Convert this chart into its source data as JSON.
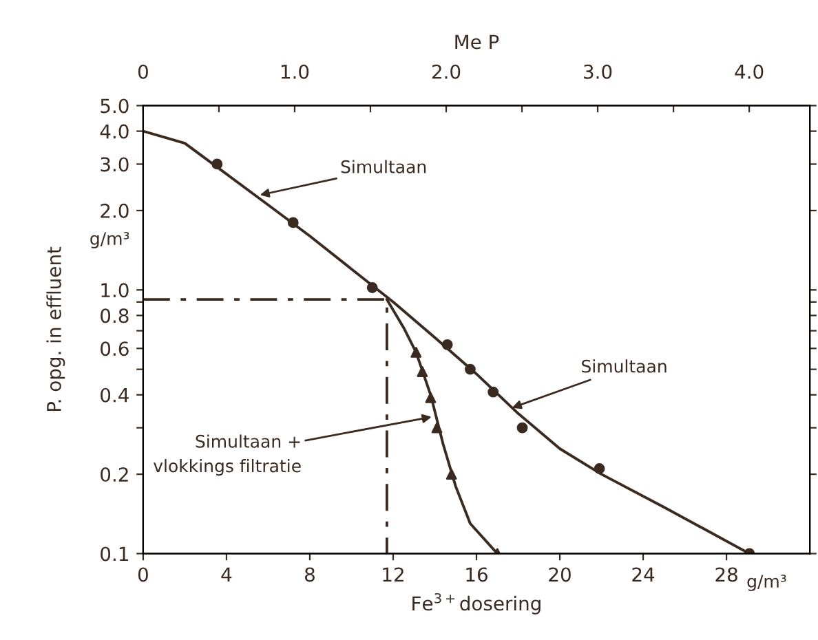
{
  "chart_data": {
    "type": "line",
    "xlabel": "Fe$^{3+}$dosering",
    "ylabel": "P. opg. in effluent",
    "x2label": "Me P",
    "xlim": [
      0,
      32
    ],
    "xticks": [
      0,
      4,
      8,
      12,
      16,
      20,
      24,
      28
    ],
    "x2lim": [
      0,
      4.4
    ],
    "x2ticks": [
      0,
      {
        "value": 0.5,
        "label": null
      },
      {
        "value": 1.0,
        "label": "1.0"
      },
      {
        "value": 1.5,
        "label": null
      },
      {
        "value": 2.0,
        "label": "2.0"
      },
      {
        "value": 2.5,
        "label": null
      },
      {
        "value": 3.0,
        "label": "3.0"
      },
      {
        "value": 3.5,
        "label": null
      },
      {
        "value": 4.0,
        "label": "4.0"
      }
    ],
    "log": "y",
    "ylim": [
      0.1,
      5.0
    ],
    "yticks": [
      {
        "value": 0.1,
        "label": "0.1"
      },
      {
        "value": 0.2,
        "label": "0.2"
      },
      {
        "value": 0.3,
        "label": null
      },
      {
        "value": 0.4,
        "label": "0.4"
      },
      {
        "value": 0.5,
        "label": null
      },
      {
        "value": 0.6,
        "label": "0.6"
      },
      {
        "value": 0.7,
        "label": null
      },
      {
        "value": 0.8,
        "label": "0.8"
      },
      {
        "value": 0.9,
        "label": null
      },
      {
        "value": 1.0,
        "label": "1.0"
      },
      {
        "value": 2.0,
        "label": "2.0"
      },
      {
        "value": 3.0,
        "label": "3.0"
      },
      {
        "value": 4.0,
        "label": "4.0"
      },
      {
        "value": 5.0,
        "label": "5.0"
      }
    ],
    "grid": false,
    "legend": false,
    "series": [
      {
        "color": "#3a2a20",
        "marker": "none",
        "line_style": "solid",
        "x": [
          0,
          2,
          4,
          6,
          8,
          10,
          12,
          14,
          16,
          18,
          20,
          22,
          25,
          29.1
        ],
        "values": [
          4.0,
          3.6,
          2.75,
          2.1,
          1.6,
          1.2,
          0.9,
          0.66,
          0.48,
          0.34,
          0.25,
          0.2,
          0.15,
          0.1
        ]
      },
      {
        "type": "scatter",
        "color": "#3a2a20",
        "marker": "circle",
        "x": [
          3.55,
          7.2,
          11.0,
          14.6,
          15.7,
          16.8,
          18.2,
          21.9,
          29.1
        ],
        "values": [
          3.0,
          1.8,
          1.02,
          0.62,
          0.5,
          0.41,
          0.3,
          0.21,
          0.1
        ]
      },
      {
        "color": "#3a2a20",
        "marker": "none",
        "line_style": "solid",
        "x": [
          11.7,
          12.5,
          13.1,
          13.8,
          14.4,
          15.0,
          15.7,
          17.0
        ],
        "values": [
          0.92,
          0.72,
          0.58,
          0.4,
          0.26,
          0.18,
          0.13,
          0.1
        ]
      },
      {
        "type": "scatter",
        "color": "#3a2a20",
        "marker": "triangle",
        "x": [
          13.1,
          13.4,
          13.8,
          14.1,
          14.8,
          17.0
        ],
        "values": [
          0.58,
          0.49,
          0.39,
          0.3,
          0.2,
          0.1
        ]
      },
      {
        "color": "#3a2a20",
        "marker": "none",
        "line_style": "dashed",
        "x": [
          0,
          11.7,
          11.7
        ],
        "values": [
          0.92,
          0.92,
          0.1
        ]
      }
    ],
    "annotations": [
      {
        "text": "Simultaan",
        "x": 5.6,
        "y": 2.29
      },
      {
        "text": "Simultaan",
        "x": 17.7,
        "y": 0.357
      },
      {
        "text": "Simultaan +\nvlokkings filtratie",
        "x": 13.85,
        "y": 0.33
      },
      "g/m³",
      "g/m³"
    ]
  }
}
